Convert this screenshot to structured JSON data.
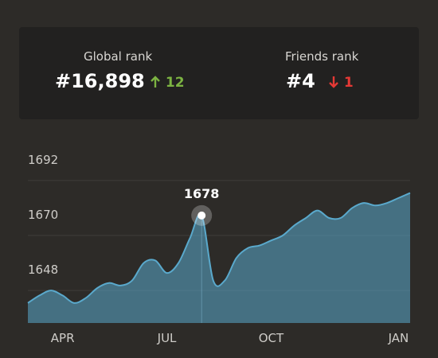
{
  "rank_card": {
    "global": {
      "label": "Global rank",
      "value": "#16,898",
      "change": "12"
    },
    "friends": {
      "label": "Friends rank",
      "value": "#4",
      "change": "1"
    }
  },
  "chart_data": {
    "type": "area",
    "categories": [
      null,
      null,
      null,
      "APR",
      null,
      null,
      null,
      null,
      null,
      null,
      null,
      null,
      "JUL",
      null,
      null,
      null,
      null,
      null,
      null,
      null,
      null,
      "OCT",
      null,
      null,
      null,
      null,
      null,
      null,
      null,
      null,
      null,
      null,
      "JAN",
      null
    ],
    "values": [
      1643,
      1646,
      1648,
      1646,
      1643,
      1645,
      1649,
      1651,
      1650,
      1652,
      1659,
      1660,
      1655,
      1659,
      1669,
      1678,
      1652,
      1652,
      1661,
      1665,
      1666,
      1668,
      1670,
      1674,
      1677,
      1680,
      1677,
      1677,
      1681,
      1683,
      1682,
      1683,
      1685,
      1687
    ],
    "color": "#5aa9cc",
    "highlight_index": 15,
    "ylim": [
      1635,
      1705
    ],
    "yticks": [
      1648,
      1670,
      1692
    ],
    "grid": true
  }
}
